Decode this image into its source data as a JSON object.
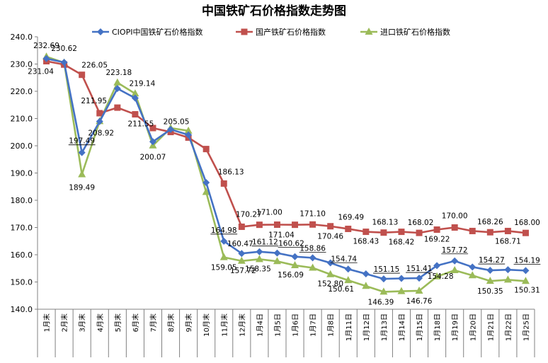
{
  "chart_data": {
    "type": "line",
    "title": "中国铁矿石价格指数走势图",
    "xlabel": "",
    "ylabel": "",
    "ylim": [
      140.0,
      240.0
    ],
    "yticks": [
      "140.0",
      "150.0",
      "160.0",
      "170.0",
      "180.0",
      "190.0",
      "200.0",
      "210.0",
      "220.0",
      "230.0",
      "240.0"
    ],
    "grid": false,
    "legend_position": "top",
    "categories": [
      "1月末",
      "2月末",
      "3月末",
      "4月末",
      "5月末",
      "6月末",
      "7月末",
      "8月末",
      "9月末",
      "10月末",
      "11月末",
      "12月末",
      "1月4日",
      "1月5日",
      "1月6日",
      "1月7日",
      "1月8日",
      "1月11日",
      "1月12日",
      "1月13日",
      "1月14日",
      "1月15日",
      "1月18日",
      "1月19日",
      "1月20日",
      "1月21日",
      "1月22日",
      "1月25日"
    ],
    "series": [
      {
        "name": "CIOPI中国铁矿石价格指数",
        "color": "#4472C4",
        "marker": "diamond",
        "values": [
          232.0,
          230.62,
          197.49,
          208.92,
          221.0,
          217.5,
          201.5,
          206.0,
          204.0,
          186.5,
          164.98,
          160.47,
          161.12,
          160.62,
          159.3,
          158.86,
          157.0,
          154.74,
          153.0,
          151.15,
          151.3,
          151.41,
          156.0,
          157.72,
          155.5,
          154.27,
          154.5,
          154.19
        ]
      },
      {
        "name": "国产铁矿石价格指数",
        "color": "#C0504D",
        "marker": "square",
        "values": [
          231.04,
          229.8,
          226.05,
          211.95,
          214.0,
          211.55,
          206.5,
          205.05,
          203.0,
          198.8,
          186.13,
          170.27,
          171.0,
          171.04,
          171.0,
          171.1,
          170.46,
          169.49,
          168.43,
          168.13,
          168.42,
          168.02,
          169.22,
          170.0,
          168.71,
          168.26,
          168.71,
          168.0
        ]
      },
      {
        "name": "进口铁矿石价格指数",
        "color": "#9BBB59",
        "marker": "triangle",
        "values": [
          232.69,
          230.5,
          189.49,
          209.0,
          223.18,
          219.14,
          200.07,
          206.5,
          205.5,
          183.0,
          159.05,
          157.72,
          158.35,
          157.6,
          156.09,
          155.2,
          152.8,
          150.61,
          148.5,
          146.39,
          146.6,
          146.76,
          152.0,
          154.28,
          152.4,
          150.35,
          150.8,
          150.31
        ]
      }
    ],
    "data_labels": [
      {
        "text": "232.69",
        "series": 2,
        "index": 0
      },
      {
        "text": "231.04",
        "series": 1,
        "index": 0
      },
      {
        "text": "230.62",
        "series": 0,
        "index": 1
      },
      {
        "text": "226.05",
        "series": 1,
        "index": 2
      },
      {
        "text": "211.95",
        "series": 1,
        "index": 3
      },
      {
        "text": "197.49",
        "series": 0,
        "index": 2
      },
      {
        "text": "208.92",
        "series": 0,
        "index": 3
      },
      {
        "text": "189.49",
        "series": 2,
        "index": 2
      },
      {
        "text": "223.18",
        "series": 2,
        "index": 4
      },
      {
        "text": "219.14",
        "series": 2,
        "index": 5
      },
      {
        "text": "211.55",
        "series": 1,
        "index": 5
      },
      {
        "text": "205.05",
        "series": 1,
        "index": 7
      },
      {
        "text": "200.07",
        "series": 2,
        "index": 6
      },
      {
        "text": "186.13",
        "series": 1,
        "index": 10
      },
      {
        "text": "170.27",
        "series": 1,
        "index": 11
      },
      {
        "text": "171.00",
        "series": 1,
        "index": 12
      },
      {
        "text": "171.10",
        "series": 1,
        "index": 15
      },
      {
        "text": "169.49",
        "series": 1,
        "index": 17
      },
      {
        "text": "171.04",
        "series": 1,
        "index": 13
      },
      {
        "text": "170.46",
        "series": 1,
        "index": 16
      },
      {
        "text": "168.13",
        "series": 1,
        "index": 19
      },
      {
        "text": "168.02",
        "series": 1,
        "index": 21
      },
      {
        "text": "170.00",
        "series": 1,
        "index": 23
      },
      {
        "text": "168.26",
        "series": 1,
        "index": 25
      },
      {
        "text": "168.00",
        "series": 1,
        "index": 27
      },
      {
        "text": "168.43",
        "series": 1,
        "index": 18
      },
      {
        "text": "168.42",
        "series": 1,
        "index": 20
      },
      {
        "text": "169.22",
        "series": 1,
        "index": 22
      },
      {
        "text": "168.71",
        "series": 1,
        "index": 26
      },
      {
        "text": "164.98",
        "series": 0,
        "index": 10
      },
      {
        "text": "160.47",
        "series": 0,
        "index": 11
      },
      {
        "text": "161.12",
        "series": 0,
        "index": 12
      },
      {
        "text": "160.62",
        "series": 0,
        "index": 13
      },
      {
        "text": "158.86",
        "series": 0,
        "index": 15
      },
      {
        "text": "154.74",
        "series": 0,
        "index": 17
      },
      {
        "text": "151.15",
        "series": 0,
        "index": 19
      },
      {
        "text": "151.41",
        "series": 0,
        "index": 21
      },
      {
        "text": "157.72",
        "series": 0,
        "index": 23
      },
      {
        "text": "154.27",
        "series": 0,
        "index": 25
      },
      {
        "text": "154.19",
        "series": 0,
        "index": 27
      },
      {
        "text": "159.05",
        "series": 2,
        "index": 10
      },
      {
        "text": "157.72",
        "series": 2,
        "index": 11
      },
      {
        "text": "158.35",
        "series": 2,
        "index": 12
      },
      {
        "text": "156.09",
        "series": 2,
        "index": 14
      },
      {
        "text": "152.80",
        "series": 2,
        "index": 16
      },
      {
        "text": "150.61",
        "series": 2,
        "index": 17
      },
      {
        "text": "146.39",
        "series": 2,
        "index": 19
      },
      {
        "text": "146.76",
        "series": 2,
        "index": 21
      },
      {
        "text": "154.28",
        "series": 2,
        "index": 23
      },
      {
        "text": "150.35",
        "series": 2,
        "index": 25
      },
      {
        "text": "150.31",
        "series": 2,
        "index": 27
      }
    ]
  }
}
